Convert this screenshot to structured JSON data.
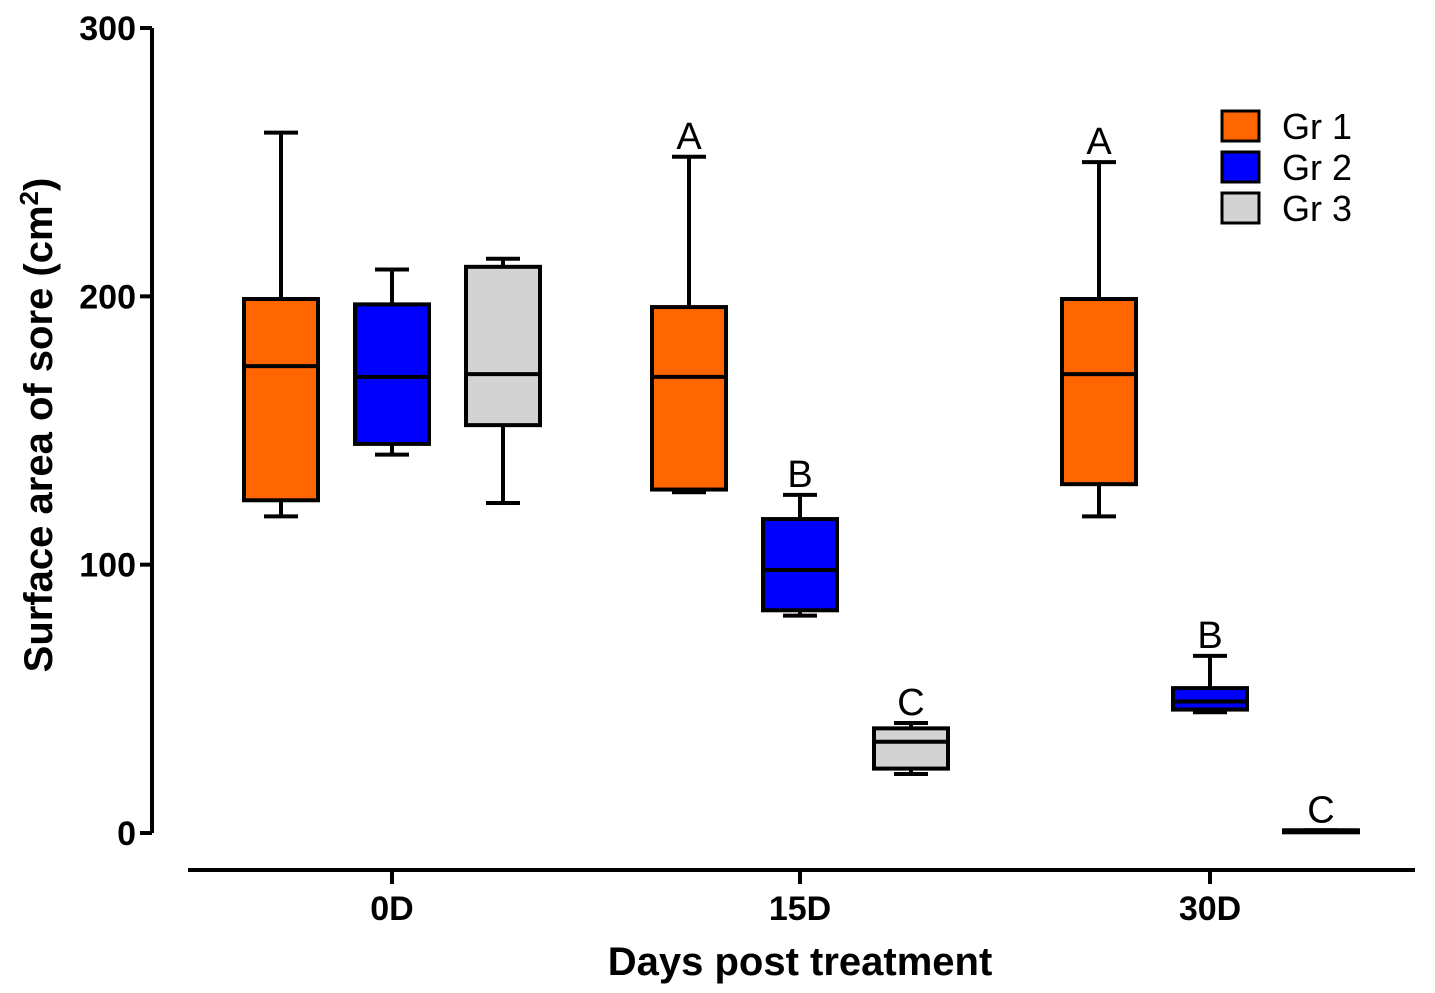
{
  "chart_data": {
    "type": "box",
    "xlabel": "Days post treatment",
    "ylabel": "Surface area of sore (cm",
    "ylabel_superscript": "2",
    "ylabel_suffix": ")",
    "ylim": [
      0,
      300
    ],
    "yticks": [
      0,
      100,
      200,
      300
    ],
    "yticks_text": [
      "0",
      "100",
      "200",
      "300"
    ],
    "categories": [
      "0D",
      "15D",
      "30D"
    ],
    "legend_position": "top-right",
    "series": [
      {
        "name": "Gr 1",
        "color": "#ff6600",
        "boxes": [
          {
            "min": 118,
            "q1": 124,
            "median": 174,
            "q3": 199,
            "max": 261,
            "label": ""
          },
          {
            "min": 127,
            "q1": 128,
            "median": 170,
            "q3": 196,
            "max": 252,
            "label": "A"
          },
          {
            "min": 118,
            "q1": 130,
            "median": 171,
            "q3": 199,
            "max": 250,
            "label": "A"
          }
        ]
      },
      {
        "name": "Gr 2",
        "color": "#0000ff",
        "boxes": [
          {
            "min": 141,
            "q1": 145,
            "median": 170,
            "q3": 197,
            "max": 210,
            "label": ""
          },
          {
            "min": 81,
            "q1": 83,
            "median": 98,
            "q3": 117,
            "max": 126,
            "label": "B"
          },
          {
            "min": 45,
            "q1": 46,
            "median": 49,
            "q3": 54,
            "max": 66,
            "label": "B"
          }
        ]
      },
      {
        "name": "Gr 3",
        "color": "#d3d3d3",
        "boxes": [
          {
            "min": 123,
            "q1": 152,
            "median": 171,
            "q3": 211,
            "max": 214,
            "label": ""
          },
          {
            "min": 22,
            "q1": 24,
            "median": 34,
            "q3": 39,
            "max": 41,
            "label": "C"
          },
          {
            "min": 1,
            "q1": 1,
            "median": 1,
            "q3": 1,
            "max": 1,
            "label": "C"
          }
        ]
      }
    ]
  }
}
